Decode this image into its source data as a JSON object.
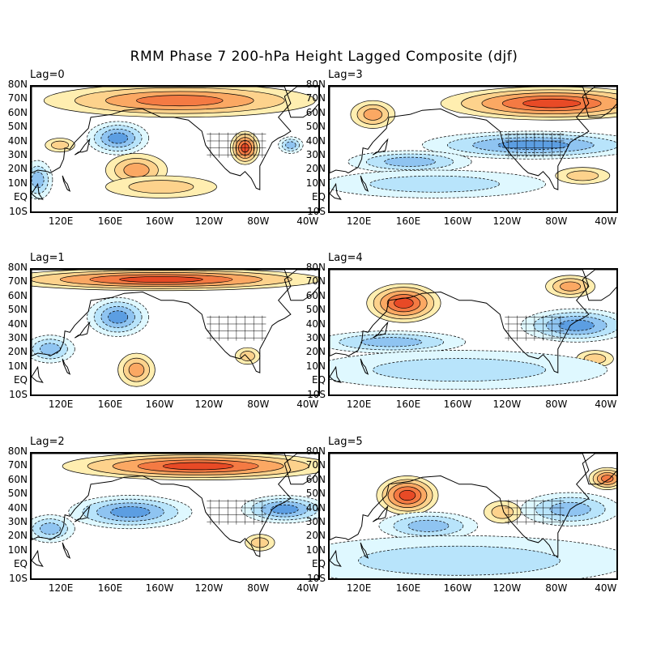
{
  "title": "RMM Phase 7 200-hPa Height Lagged Composite (djf)",
  "lat_labels": [
    "80N",
    "70N",
    "60N",
    "50N",
    "40N",
    "30N",
    "20N",
    "10N",
    "EQ",
    "10S"
  ],
  "lon_labels": [
    "120E",
    "160E",
    "160W",
    "120W",
    "80W",
    "40W"
  ],
  "colors": {
    "warm": [
      "#ffeeb0",
      "#fdd28c",
      "#fba863",
      "#f47a43",
      "#e84a26"
    ],
    "cool": [
      "#dff8ff",
      "#b8e4fb",
      "#8fc4f1",
      "#5c9ee2"
    ],
    "land": "#000000"
  },
  "panels": [
    {
      "label": "Lag=0",
      "anomalies": [
        {
          "sign": "+",
          "level": 3,
          "lon": 215,
          "lat": 72,
          "rx": 110,
          "ry": 12
        },
        {
          "sign": "+",
          "level": 4,
          "lon": 268,
          "lat": 38,
          "rx": 12,
          "ry": 12
        },
        {
          "sign": "+",
          "level": 2,
          "lon": 180,
          "lat": 22,
          "rx": 25,
          "ry": 12
        },
        {
          "sign": "+",
          "level": 1,
          "lon": 200,
          "lat": 10,
          "rx": 45,
          "ry": 8
        },
        {
          "sign": "+",
          "level": 1,
          "lon": 118,
          "lat": 40,
          "rx": 12,
          "ry": 5
        },
        {
          "sign": "-",
          "level": 3,
          "lon": 165,
          "lat": 45,
          "rx": 25,
          "ry": 12
        },
        {
          "sign": "-",
          "level": 2,
          "lon": 305,
          "lat": 40,
          "rx": 10,
          "ry": 6
        },
        {
          "sign": "-",
          "level": 2,
          "lon": 100,
          "lat": 15,
          "rx": 12,
          "ry": 14
        }
      ]
    },
    {
      "label": "Lag=3",
      "anomalies": [
        {
          "sign": "+",
          "level": 4,
          "lon": 275,
          "lat": 70,
          "rx": 90,
          "ry": 12
        },
        {
          "sign": "+",
          "level": 2,
          "lon": 130,
          "lat": 62,
          "rx": 18,
          "ry": 10
        },
        {
          "sign": "+",
          "level": 1,
          "lon": 300,
          "lat": 18,
          "rx": 22,
          "ry": 6
        },
        {
          "sign": "-",
          "level": 3,
          "lon": 260,
          "lat": 40,
          "rx": 90,
          "ry": 10
        },
        {
          "sign": "-",
          "level": 2,
          "lon": 160,
          "lat": 28,
          "rx": 50,
          "ry": 8
        },
        {
          "sign": "-",
          "level": 1,
          "lon": 180,
          "lat": 12,
          "rx": 90,
          "ry": 10
        }
      ]
    },
    {
      "label": "Lag=1",
      "anomalies": [
        {
          "sign": "+",
          "level": 4,
          "lon": 200,
          "lat": 75,
          "rx": 130,
          "ry": 8
        },
        {
          "sign": "+",
          "level": 2,
          "lon": 180,
          "lat": 10,
          "rx": 15,
          "ry": 12
        },
        {
          "sign": "+",
          "level": 1,
          "lon": 270,
          "lat": 20,
          "rx": 10,
          "ry": 6
        },
        {
          "sign": "-",
          "level": 3,
          "lon": 165,
          "lat": 48,
          "rx": 25,
          "ry": 14
        },
        {
          "sign": "-",
          "level": 2,
          "lon": 110,
          "lat": 25,
          "rx": 20,
          "ry": 10
        }
      ]
    },
    {
      "label": "Lag=4",
      "anomalies": [
        {
          "sign": "+",
          "level": 4,
          "lon": 155,
          "lat": 58,
          "rx": 30,
          "ry": 14
        },
        {
          "sign": "+",
          "level": 2,
          "lon": 290,
          "lat": 70,
          "rx": 20,
          "ry": 8
        },
        {
          "sign": "+",
          "level": 1,
          "lon": 310,
          "lat": 18,
          "rx": 15,
          "ry": 6
        },
        {
          "sign": "-",
          "level": 3,
          "lon": 295,
          "lat": 42,
          "rx": 45,
          "ry": 12
        },
        {
          "sign": "-",
          "level": 2,
          "lon": 145,
          "lat": 30,
          "rx": 60,
          "ry": 8
        },
        {
          "sign": "-",
          "level": 1,
          "lon": 200,
          "lat": 10,
          "rx": 120,
          "ry": 14
        }
      ]
    },
    {
      "label": "Lag=2",
      "anomalies": [
        {
          "sign": "+",
          "level": 4,
          "lon": 230,
          "lat": 73,
          "rx": 110,
          "ry": 10
        },
        {
          "sign": "+",
          "level": 1,
          "lon": 280,
          "lat": 18,
          "rx": 12,
          "ry": 6
        },
        {
          "sign": "-",
          "level": 3,
          "lon": 175,
          "lat": 40,
          "rx": 50,
          "ry": 12
        },
        {
          "sign": "-",
          "level": 3,
          "lon": 300,
          "lat": 42,
          "rx": 35,
          "ry": 10
        },
        {
          "sign": "-",
          "level": 2,
          "lon": 110,
          "lat": 28,
          "rx": 20,
          "ry": 10
        }
      ]
    },
    {
      "label": "Lag=5",
      "anomalies": [
        {
          "sign": "+",
          "level": 4,
          "lon": 158,
          "lat": 52,
          "rx": 25,
          "ry": 14
        },
        {
          "sign": "+",
          "level": 3,
          "lon": 320,
          "lat": 64,
          "rx": 15,
          "ry": 8
        },
        {
          "sign": "+",
          "level": 1,
          "lon": 235,
          "lat": 40,
          "rx": 15,
          "ry": 8
        },
        {
          "sign": "-",
          "level": 2,
          "lon": 290,
          "lat": 42,
          "rx": 40,
          "ry": 12
        },
        {
          "sign": "-",
          "level": 2,
          "lon": 175,
          "lat": 30,
          "rx": 40,
          "ry": 10
        },
        {
          "sign": "-",
          "level": 1,
          "lon": 200,
          "lat": 5,
          "rx": 140,
          "ry": 18
        }
      ]
    }
  ]
}
